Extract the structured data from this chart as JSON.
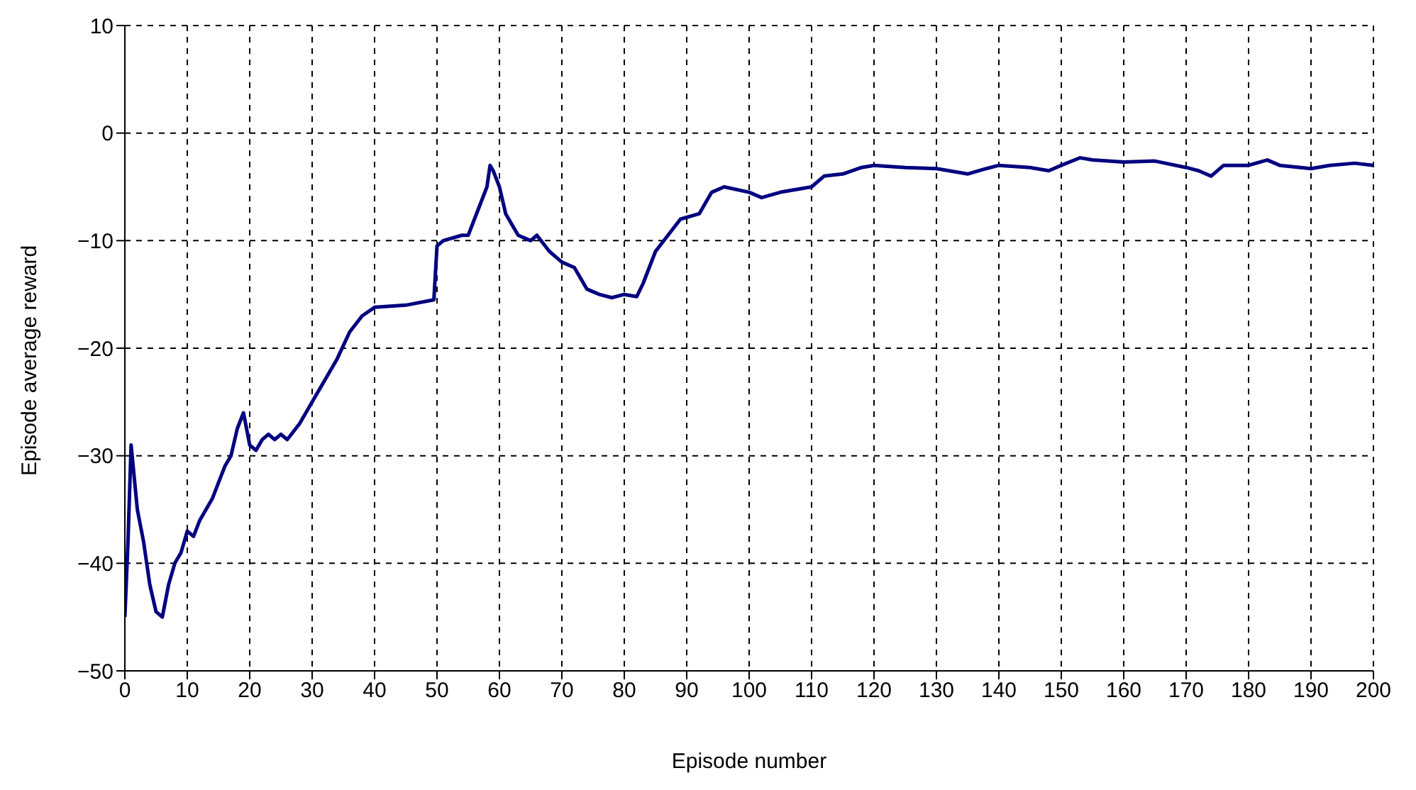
{
  "chart_data": {
    "type": "line",
    "xlabel": "Episode number",
    "ylabel": "Episode average reward",
    "x": [
      0,
      0.5,
      1,
      2,
      3,
      4,
      5,
      6,
      7,
      8,
      9,
      10,
      11,
      12,
      14,
      16,
      17,
      18,
      19,
      20,
      21,
      22,
      23,
      24,
      25,
      26,
      28,
      30,
      32,
      34,
      36,
      38,
      40,
      45,
      49.5,
      50,
      51,
      54,
      55,
      56,
      57,
      58,
      58.5,
      59,
      60,
      61,
      63,
      65,
      66,
      68,
      70,
      72,
      74,
      76,
      78,
      80,
      82,
      83,
      85,
      87,
      89,
      92,
      94,
      96,
      100,
      102,
      105,
      110,
      112,
      115,
      118,
      120,
      125,
      130,
      135,
      138,
      140,
      145,
      148,
      150,
      153,
      155,
      160,
      165,
      170,
      172,
      174,
      176,
      180,
      183,
      185,
      190,
      193,
      197,
      200
    ],
    "series": [
      {
        "color": "#000080",
        "values": [
          -45,
          -38,
          -29,
          -35,
          -38,
          -42,
          -44.5,
          -45,
          -42,
          -40,
          -39,
          -37,
          -37.5,
          -36,
          -34,
          -31,
          -30,
          -27.5,
          -26,
          -29,
          -29.5,
          -28.5,
          -28,
          -28.5,
          -28,
          -28.5,
          -27,
          -25,
          -23,
          -21,
          -18.5,
          -17,
          -16.2,
          -16,
          -15.5,
          -10.5,
          -10,
          -9.5,
          -9.5,
          -8,
          -6.5,
          -5,
          -3,
          -3.5,
          -5,
          -7.5,
          -9.5,
          -10,
          -9.5,
          -11,
          -12,
          -12.5,
          -14.5,
          -15,
          -15.3,
          -15,
          -15.2,
          -14,
          -11,
          -9.5,
          -8,
          -7.5,
          -5.5,
          -5,
          -5.5,
          -6,
          -5.5,
          -5,
          -4,
          -3.8,
          -3.2,
          -3,
          -3.2,
          -3.3,
          -3.8,
          -3.3,
          -3,
          -3.2,
          -3.5,
          -3,
          -2.3,
          -2.5,
          -2.7,
          -2.6,
          -3.2,
          -3.5,
          -4,
          -3,
          -3,
          -2.5,
          -3,
          -3.3,
          -3,
          -2.8,
          -3
        ]
      }
    ],
    "xlim": [
      0,
      200
    ],
    "xticks": [
      0,
      10,
      20,
      30,
      40,
      50,
      60,
      70,
      80,
      90,
      100,
      110,
      120,
      130,
      140,
      150,
      160,
      170,
      180,
      190,
      200
    ],
    "ylim": [
      -50,
      10
    ],
    "yticks": [
      -50,
      -40,
      -30,
      -20,
      -10,
      0,
      10
    ],
    "grid": true,
    "legend": false,
    "marker": "none",
    "line_style": "solid"
  }
}
